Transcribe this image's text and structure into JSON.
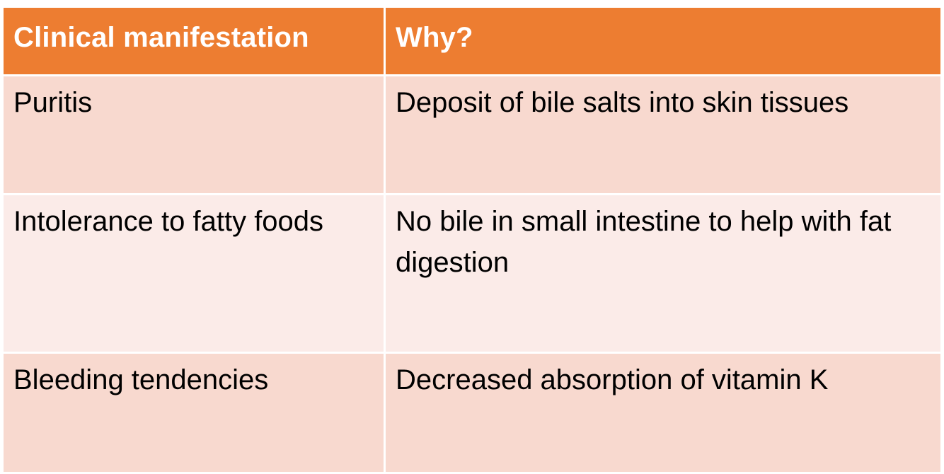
{
  "table": {
    "headers": [
      "Clinical manifestation",
      "Why?"
    ],
    "rows": [
      [
        "Puritis",
        "Deposit of bile salts into skin tissues"
      ],
      [
        "Intolerance to fatty foods",
        "No bile in small intestine to help with fat digestion"
      ],
      [
        "Bleeding tendencies",
        "Decreased absorption of vitamin K"
      ]
    ]
  },
  "colors": {
    "header_bg": "#ed7d31",
    "row_odd_bg": "#f8d9cf",
    "row_even_bg": "#fbebe8",
    "border": "#ffffff"
  }
}
